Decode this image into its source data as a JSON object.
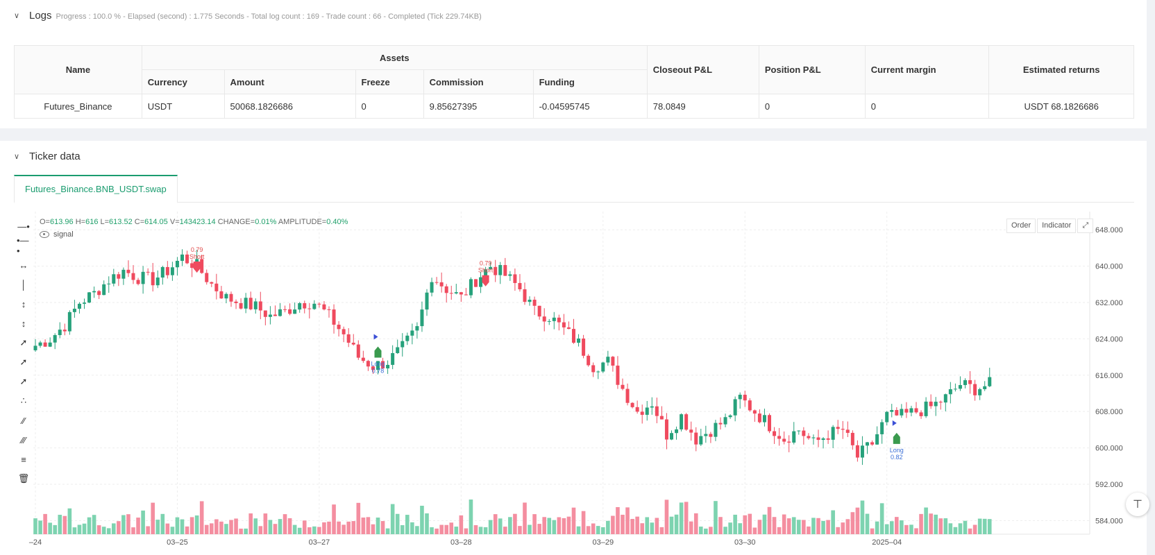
{
  "logs": {
    "title": "Logs",
    "summary": "Progress : 100.0 % - Elapsed (second) : 1.775  Seconds - Total log count : 169 - Trade count : 66 - Completed (Tick 229.74KB)"
  },
  "assets_table": {
    "headers": {
      "name": "Name",
      "assets": "Assets",
      "currency": "Currency",
      "amount": "Amount",
      "freeze": "Freeze",
      "commission": "Commission",
      "funding": "Funding",
      "closeout_pnl": "Closeout P&L",
      "position_pnl": "Position P&L",
      "current_margin": "Current margin",
      "estimated_returns": "Estimated returns"
    },
    "row": {
      "name": "Futures_Binance",
      "currency": "USDT",
      "amount": "50068.1826686",
      "freeze": "0",
      "commission": "9.85627395",
      "funding": "-0.04595745",
      "closeout_pnl": "78.0849",
      "position_pnl": "0",
      "current_margin": "0",
      "estimated_returns": "USDT 68.1826686"
    }
  },
  "ticker": {
    "title": "Ticker data",
    "tab_label": "Futures_Binance.BNB_USDT.swap"
  },
  "ohlc": {
    "o_label": "O=",
    "o": "613.96",
    "h_label": "H=",
    "h": "616",
    "l_label": "L=",
    "l": "613.52",
    "c_label": "C=",
    "c": "614.05",
    "v_label": "V=",
    "v": "143423.14",
    "change_label": "CHANGE=",
    "change": "0.01%",
    "amplitude_label": "AMPLITUDE=",
    "amplitude": "0.40%"
  },
  "indicator_name": "signal",
  "chart_buttons": {
    "order": "Order",
    "indicator": "Indicator"
  },
  "toolbar_icons": [
    "horizontal-ray-icon",
    "horizontal-line-icon",
    "horizontal-segment-icon",
    "vertical-line-icon",
    "cross-line-icon",
    "vertical-segment-icon",
    "trend-line-icon",
    "ray-icon",
    "segment-icon",
    "price-label-icon",
    "parallel-channel-icon",
    "multi-channel-icon",
    "fib-icon",
    "trash-icon"
  ],
  "colors": {
    "up": "#26a17b",
    "down": "#ef4a5e",
    "vol_up": "#7dd3b0",
    "vol_down": "#f48ea0",
    "accent": "#1a9c6f",
    "long_marker": "#3a9a4e",
    "short_marker": "#ef4a5e",
    "long_text": "#3b6fd6",
    "short_text": "#e04a4a"
  },
  "chart_data": {
    "type": "candlestick",
    "y_ticks": [
      584,
      592,
      600,
      608,
      616,
      624,
      632,
      640,
      648
    ],
    "y_tick_labels": [
      "584.000",
      "592.000",
      "600.000",
      "608.000",
      "616.000",
      "624.000",
      "632.000",
      "640.000",
      "648.000"
    ],
    "ylim": [
      581,
      652
    ],
    "x_tick_labels": [
      {
        "label": "–24",
        "index": 0
      },
      {
        "label": "03–25",
        "index": 29
      },
      {
        "label": "03–27",
        "index": 58
      },
      {
        "label": "03–28",
        "index": 87
      },
      {
        "label": "03–29",
        "index": 116
      },
      {
        "label": "03–30",
        "index": 145
      },
      {
        "label": "2025–04",
        "index": 174
      }
    ],
    "candle_count": 196,
    "close_anchors": [
      [
        0,
        622.5
      ],
      [
        3,
        624
      ],
      [
        6,
        627
      ],
      [
        9,
        632
      ],
      [
        12,
        634
      ],
      [
        15,
        637
      ],
      [
        18,
        639
      ],
      [
        21,
        637.5
      ],
      [
        24,
        637
      ],
      [
        27,
        639
      ],
      [
        30,
        642
      ],
      [
        33,
        640
      ],
      [
        36,
        636
      ],
      [
        39,
        633
      ],
      [
        42,
        632
      ],
      [
        45,
        631
      ],
      [
        48,
        629
      ],
      [
        51,
        630
      ],
      [
        54,
        632
      ],
      [
        57,
        632
      ],
      [
        60,
        629
      ],
      [
        63,
        625
      ],
      [
        66,
        620
      ],
      [
        69,
        618
      ],
      [
        72,
        619
      ],
      [
        75,
        622
      ],
      [
        78,
        626
      ],
      [
        81,
        638
      ],
      [
        84,
        635
      ],
      [
        87,
        633
      ],
      [
        90,
        637
      ],
      [
        93,
        640
      ],
      [
        96,
        638
      ],
      [
        99,
        635
      ],
      [
        102,
        630
      ],
      [
        105,
        629
      ],
      [
        108,
        626
      ],
      [
        111,
        623
      ],
      [
        114,
        618
      ],
      [
        117,
        619
      ],
      [
        120,
        613
      ],
      [
        123,
        608
      ],
      [
        126,
        610
      ],
      [
        129,
        603
      ],
      [
        132,
        607
      ],
      [
        135,
        602
      ],
      [
        138,
        604
      ],
      [
        141,
        606
      ],
      [
        144,
        611
      ],
      [
        147,
        608
      ],
      [
        150,
        605
      ],
      [
        153,
        602
      ],
      [
        156,
        604
      ],
      [
        159,
        601
      ],
      [
        162,
        603
      ],
      [
        165,
        604
      ],
      [
        168,
        598
      ],
      [
        171,
        601
      ],
      [
        174,
        607
      ],
      [
        177,
        607
      ],
      [
        180,
        608
      ],
      [
        183,
        609
      ],
      [
        186,
        611
      ],
      [
        189,
        614
      ],
      [
        192,
        613
      ],
      [
        195,
        614
      ]
    ],
    "signals": [
      {
        "type": "Short",
        "value": "0.79",
        "index": 33,
        "price": 641
      },
      {
        "type": "Long",
        "value": "0.78",
        "index": 70,
        "price": 622
      },
      {
        "type": "Short",
        "value": "0.79",
        "index": 92,
        "price": 638
      },
      {
        "type": "Long",
        "value": "0.82",
        "index": 176,
        "price": 603
      }
    ]
  },
  "misc": {
    "float_icon": "back-to-top-icon"
  }
}
